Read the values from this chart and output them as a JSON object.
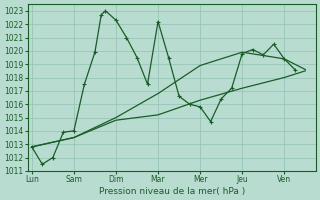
{
  "xlabel": "Pression niveau de la mer( hPa )",
  "ylim": [
    1011,
    1023.5
  ],
  "yticks": [
    1011,
    1012,
    1013,
    1014,
    1015,
    1016,
    1017,
    1018,
    1019,
    1020,
    1021,
    1022,
    1023
  ],
  "xtick_labels": [
    "Lun",
    "Sam",
    "Dim",
    "Mar",
    "Mer",
    "Jeu",
    "Ven"
  ],
  "xtick_positions": [
    0,
    2,
    4,
    6,
    8,
    10,
    12
  ],
  "xlim": [
    -0.2,
    13.5
  ],
  "background_color": "#b8ddd0",
  "grid_color": "#99c4b8",
  "line_color": "#1a5c28",
  "line1_x": [
    0,
    0.5,
    1,
    1.5,
    2,
    2.5,
    3,
    3.3,
    3.5,
    4,
    4.5,
    5,
    5.5,
    6,
    6.5,
    7,
    7.5,
    8,
    8.5,
    9,
    9.5,
    10,
    10.5,
    11,
    11.5,
    12,
    12.5
  ],
  "line1_y": [
    1012.8,
    1011.5,
    1012.0,
    1013.9,
    1014.0,
    1017.5,
    1019.9,
    1022.7,
    1023.0,
    1022.3,
    1021.0,
    1019.5,
    1017.5,
    1022.2,
    1019.5,
    1016.6,
    1016.0,
    1015.8,
    1014.7,
    1016.4,
    1017.2,
    1019.8,
    1020.1,
    1019.7,
    1020.5,
    1019.4,
    1018.6
  ],
  "line2_x": [
    0,
    2,
    4,
    6,
    8,
    10,
    12,
    13.0
  ],
  "line2_y": [
    1012.8,
    1013.5,
    1014.8,
    1015.2,
    1016.3,
    1017.2,
    1018.0,
    1018.5
  ],
  "line3_x": [
    0,
    2,
    4,
    6,
    8,
    10,
    12,
    13.0
  ],
  "line3_y": [
    1012.8,
    1013.5,
    1015.0,
    1016.8,
    1018.9,
    1019.9,
    1019.4,
    1018.6
  ]
}
